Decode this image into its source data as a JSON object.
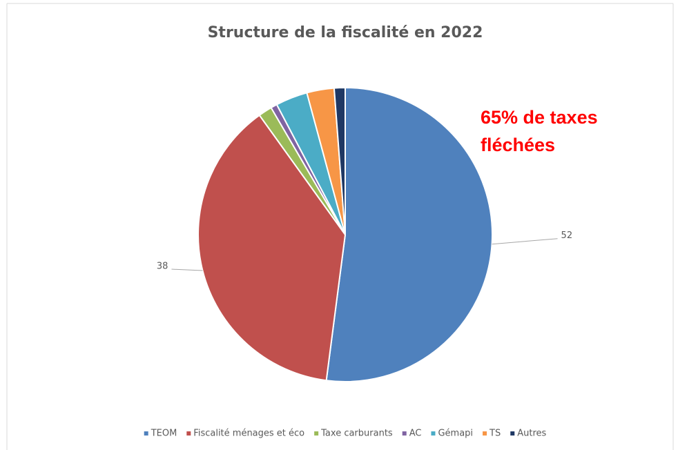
{
  "chart_data": {
    "type": "pie",
    "title": "Structure de la fiscalité en 2022",
    "annotation": [
      "65% de taxes",
      "fléchées"
    ],
    "categories": [
      "TEOM",
      "Fiscalité ménages et éco",
      "Taxe carburants",
      "AC",
      "Gémapi",
      "TS",
      "Autres"
    ],
    "values": [
      52,
      38,
      1.5,
      0.7,
      3.5,
      3,
      1.2
    ],
    "value_labels": [
      "52",
      "38",
      null,
      null,
      null,
      null,
      null
    ],
    "colors": [
      "#4f81bd",
      "#c0504d",
      "#9bbb59",
      "#8064a2",
      "#4bacc6",
      "#f79646",
      "#1f3864"
    ],
    "legend": "bottom"
  }
}
